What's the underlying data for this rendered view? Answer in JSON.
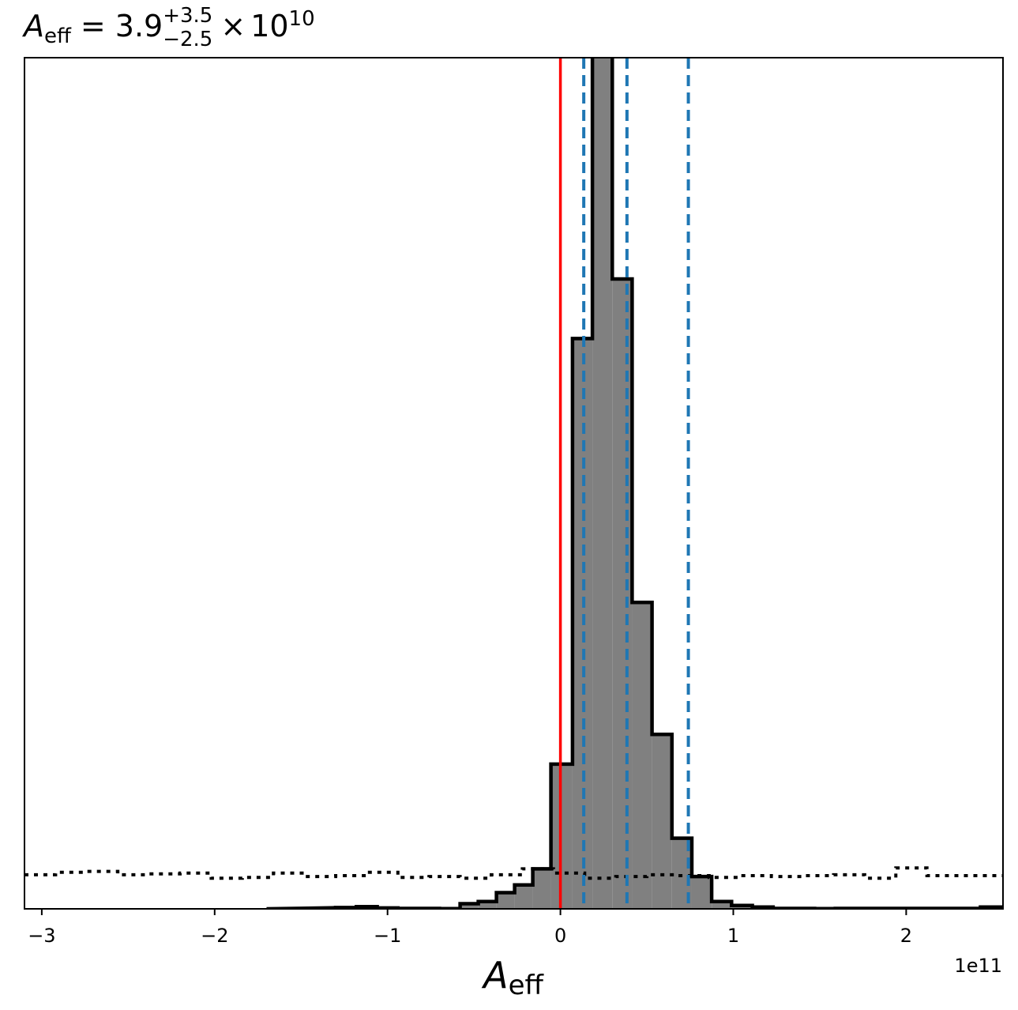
{
  "chart_data": {
    "type": "histogram",
    "title": {
      "symbol": "A",
      "symbol_sub": "eff",
      "equals": "=",
      "value": "3.9",
      "plus": "+3.5",
      "minus": "−2.5",
      "times": "×",
      "base": "10",
      "exponent": "10"
    },
    "xlabel": {
      "symbol": "A",
      "sub": "eff"
    },
    "x_offset_label": "1e11",
    "x_scale": 100000000000.0,
    "xlim": [
      -3.1,
      2.56
    ],
    "ylim": [
      0,
      1.0
    ],
    "grid": false,
    "x_ticks": [
      {
        "value": -3,
        "label": "−3"
      },
      {
        "value": -2,
        "label": "−2"
      },
      {
        "value": -1,
        "label": "−1"
      },
      {
        "value": 0,
        "label": "0"
      },
      {
        "value": 1,
        "label": "1"
      },
      {
        "value": 2,
        "label": "2"
      }
    ],
    "posterior": {
      "bin_edges": [
        -1.3,
        -1.18,
        -1.06,
        -0.94,
        -0.82,
        -0.7,
        -0.58,
        -0.475,
        -0.37,
        -0.265,
        -0.16,
        -0.055,
        0.07,
        0.185,
        0.3,
        0.415,
        0.53,
        0.645,
        0.76,
        0.875,
        0.99,
        1.11,
        1.23,
        1.35,
        1.47,
        1.59,
        1.71,
        1.83,
        1.95,
        2.07,
        2.19,
        2.31,
        2.43,
        2.55
      ],
      "heights": [
        0.0015,
        0.0025,
        0.001,
        0.0005,
        0.0005,
        0.0002,
        0.006,
        0.0085,
        0.019,
        0.028,
        0.047,
        0.17,
        0.67,
        1.05,
        0.74,
        0.36,
        0.205,
        0.083,
        0.038,
        0.0085,
        0.004,
        0.002,
        0.0005,
        0.0005,
        0.0002,
        0.0005,
        0.0005,
        0.0005,
        0.0005,
        0.0005,
        0.0005,
        0.0005,
        0.002
      ],
      "left_tail": [
        [
          -1.7,
          0.0002
        ],
        [
          -1.5,
          0.0008
        ],
        [
          -1.3,
          0.0015
        ]
      ],
      "fill_color": "#808080",
      "edge_color": "#000000"
    },
    "prior": {
      "bin_edges": [
        -3.1,
        -2.92,
        -2.74,
        -2.56,
        -2.38,
        -2.2,
        -2.02,
        -1.84,
        -1.66,
        -1.48,
        -1.3,
        -1.12,
        -0.94,
        -0.76,
        -0.58,
        -0.4,
        -0.22,
        -0.04,
        0.14,
        0.32,
        0.5,
        0.68,
        0.86,
        1.04,
        1.22,
        1.4,
        1.58,
        1.76,
        1.94,
        2.12,
        2.3,
        2.56
      ],
      "heights": [
        0.04,
        0.043,
        0.044,
        0.04,
        0.041,
        0.042,
        0.036,
        0.037,
        0.042,
        0.038,
        0.039,
        0.043,
        0.037,
        0.038,
        0.036,
        0.04,
        0.047,
        0.042,
        0.036,
        0.038,
        0.04,
        0.039,
        0.037,
        0.039,
        0.038,
        0.039,
        0.04,
        0.036,
        0.048,
        0.039,
        0.039
      ],
      "line_color": "#000000",
      "style": "dotted"
    },
    "reference_line": {
      "x": 0.0,
      "color": "#ff0000"
    },
    "quantile_lines": {
      "x": [
        0.135,
        0.385,
        0.74
      ],
      "color": "#1f77b4",
      "style": "dashed"
    }
  }
}
